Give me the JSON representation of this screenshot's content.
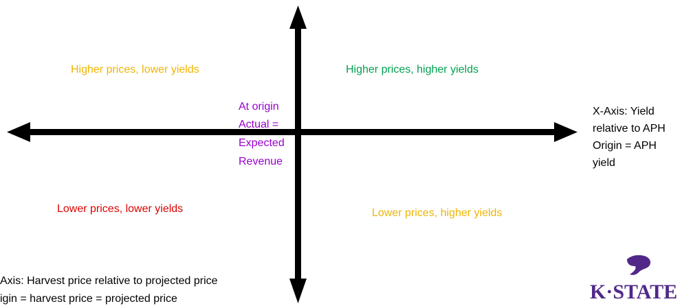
{
  "quadrants": {
    "top_left": "Higher prices, lower yields",
    "top_right": "Higher prices, higher yields",
    "bottom_left": "Lower prices, lower yields",
    "bottom_right": "Lower prices, higher yields"
  },
  "origin_note": [
    "At origin",
    "Actual =",
    "Expected",
    "Revenue"
  ],
  "x_axis_note": [
    "X-Axis: Yield",
    "relative to APH",
    "Origin = APH",
    "yield"
  ],
  "y_axis_note": [
    "Axis: Harvest price relative to projected price",
    "igin = harvest price = projected price"
  ],
  "logo": "K·STATE"
}
